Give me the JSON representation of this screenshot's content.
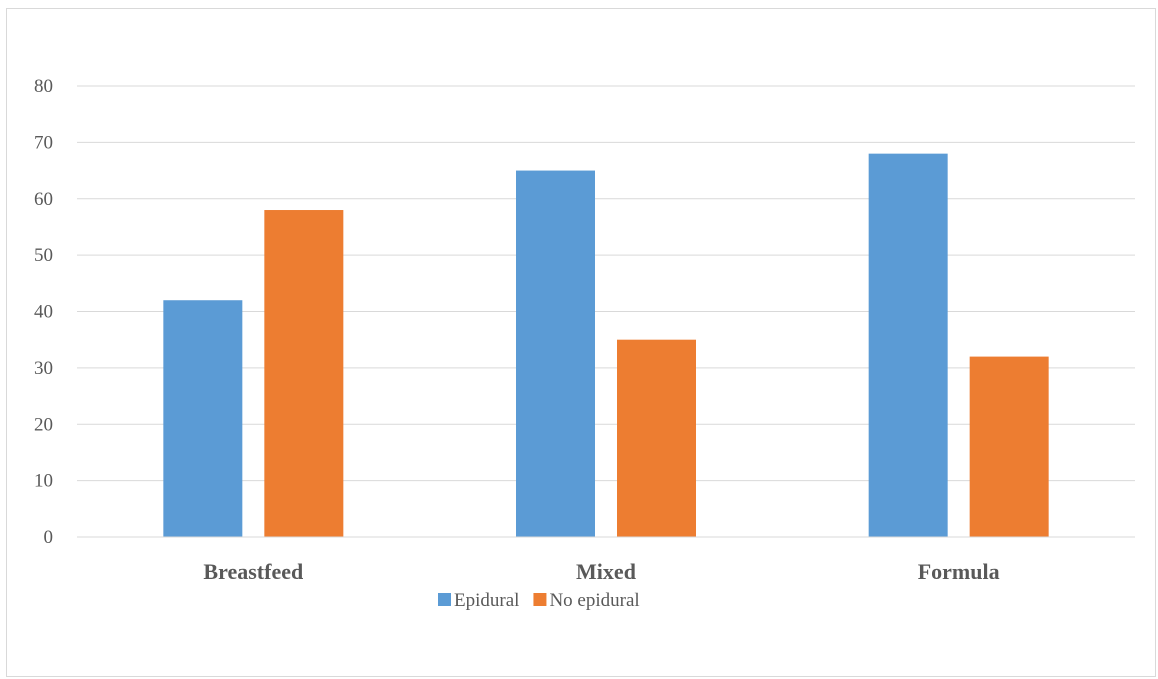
{
  "chart_data": {
    "type": "bar",
    "title": "",
    "xlabel": "",
    "ylabel": "",
    "categories": [
      "Breastfeed",
      "Mixed",
      "Formula"
    ],
    "series": [
      {
        "name": "Epidural",
        "values": [
          42,
          65,
          68
        ],
        "color": "#5B9BD5"
      },
      {
        "name": "No epidural",
        "values": [
          58,
          35,
          32
        ],
        "color": "#ED7D31"
      }
    ],
    "ylim": [
      0,
      80
    ],
    "yticks": [
      0,
      10,
      20,
      30,
      40,
      50,
      60,
      70,
      80
    ],
    "grid": true,
    "legend_position": "bottom",
    "gridline_color": "#d9d9d9"
  }
}
